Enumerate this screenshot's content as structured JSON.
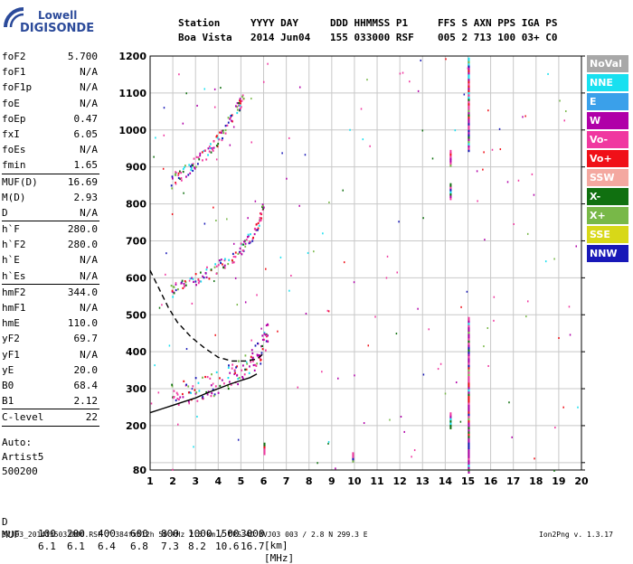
{
  "logo": {
    "line1": "Lowell",
    "line2": "DIGISONDE"
  },
  "header": {
    "row1": [
      "Station",
      "YYYY DAY",
      "DDD HHMMSS P1",
      "FFS S AXN PPS IGA PS"
    ],
    "row2": [
      "Boa Vista",
      "2014 Jun04",
      "155 033000 RSF",
      "005 2 713 100 03+ C0"
    ]
  },
  "params": [
    {
      "name": "foF2",
      "value": "5.700"
    },
    {
      "name": "foF1",
      "value": "N/A"
    },
    {
      "name": "foF1p",
      "value": "N/A"
    },
    {
      "name": "foE",
      "value": "N/A"
    },
    {
      "name": "foEp",
      "value": "0.47"
    },
    {
      "name": "fxI",
      "value": "6.05"
    },
    {
      "name": "foEs",
      "value": "N/A"
    },
    {
      "name": "fmin",
      "value": "1.65"
    },
    {
      "sep": true
    },
    {
      "name": "MUF(D)",
      "value": "16.69"
    },
    {
      "name": "M(D)",
      "value": "2.93"
    },
    {
      "name": "D",
      "value": "N/A"
    },
    {
      "sep": true
    },
    {
      "name": "h`F",
      "value": "280.0"
    },
    {
      "name": "h`F2",
      "value": "280.0"
    },
    {
      "name": "h`E",
      "value": "N/A"
    },
    {
      "name": "h`Es",
      "value": "N/A"
    },
    {
      "sep": true
    },
    {
      "name": "hmF2",
      "value": "344.0"
    },
    {
      "name": "hmF1",
      "value": "N/A"
    },
    {
      "name": "hmE",
      "value": "110.0"
    },
    {
      "name": "yF2",
      "value": "69.7"
    },
    {
      "name": "yF1",
      "value": "N/A"
    },
    {
      "name": "yE",
      "value": "20.0"
    },
    {
      "name": "B0",
      "value": "68.4"
    },
    {
      "name": "B1",
      "value": "2.12"
    },
    {
      "sep": true
    },
    {
      "name": "C-level",
      "value": "22"
    },
    {
      "sep": true
    }
  ],
  "auto": {
    "label": "Auto:",
    "artist": "Artist5",
    "version": "500200"
  },
  "legend": [
    {
      "label": "NoVal",
      "color": "#a8a8a8"
    },
    {
      "label": "NNE",
      "color": "#18e0f0"
    },
    {
      "label": "E",
      "color": "#3aa0ea"
    },
    {
      "label": "W",
      "color": "#b000a8"
    },
    {
      "label": "Vo-",
      "color": "#f038a0"
    },
    {
      "label": "Vo+",
      "color": "#f01018"
    },
    {
      "label": "SSW",
      "color": "#f4a8a0"
    },
    {
      "label": "X-",
      "color": "#107010"
    },
    {
      "label": "X+",
      "color": "#78b848"
    },
    {
      "label": "SSE",
      "color": "#d8d818"
    },
    {
      "label": "NNW",
      "color": "#1818b8"
    }
  ],
  "muf_table": {
    "d_label": "D",
    "d_values": [
      "100",
      "200",
      "400",
      "600",
      "800",
      "1000",
      "1500",
      "3000"
    ],
    "d_unit": "[km]",
    "muf_label": "MUF",
    "muf_values": [
      "6.1",
      "6.1",
      "6.4",
      "6.8",
      "7.3",
      "8.2",
      "10.6",
      "16.7"
    ],
    "muf_unit": "[MHz]"
  },
  "footer": {
    "left": "BVJ03_2014155033000.RSF / 384fx512h 50 kHz 2.5 km / DPS-4D BVJ03 003 / 2.8 N 299.3 E",
    "right": "Ion2Png v. 1.3.17"
  },
  "chart_data": {
    "type": "scatter",
    "xlim": [
      1,
      20
    ],
    "ylim": [
      80,
      1200
    ],
    "x_ticks": [
      1,
      2,
      3,
      4,
      5,
      6,
      7,
      8,
      9,
      10,
      11,
      12,
      13,
      14,
      15,
      16,
      17,
      18,
      19,
      20
    ],
    "y_ticks": [
      80,
      100,
      200,
      300,
      400,
      500,
      600,
      700,
      800,
      900,
      1000,
      1100,
      1200
    ],
    "y_tick_labels": [
      "80",
      "",
      "200",
      "300",
      "400",
      "500",
      "600",
      "700",
      "800",
      "900",
      "1000",
      "1100",
      "1200"
    ],
    "grid": true,
    "traces": [
      {
        "name": "",
        "x": [
          1.9,
          2.4,
          3.0,
          3.6,
          4.2,
          4.7,
          5.1,
          5.5,
          5.8,
          6.0,
          6.2
        ],
        "y": [
          282,
          292,
          302,
          312,
          325,
          342,
          360,
          378,
          400,
          430,
          470
        ]
      },
      {
        "name": "",
        "x": [
          1.9,
          2.4,
          3.0,
          3.6,
          4.2,
          4.7,
          5.1,
          5.5,
          5.8,
          6.0
        ],
        "y": [
          565,
          585,
          600,
          618,
          640,
          660,
          690,
          720,
          760,
          800
        ]
      },
      {
        "name": "",
        "x": [
          1.9,
          2.3,
          2.8,
          3.2,
          3.7,
          4.1,
          4.5,
          4.9,
          5.1
        ],
        "y": [
          860,
          880,
          905,
          925,
          955,
          985,
          1030,
          1070,
          1100
        ]
      }
    ],
    "model_curves": [
      {
        "style": "solid",
        "x": [
          1,
          1.5,
          2,
          2.5,
          3,
          3.5,
          4,
          4.5,
          5,
          5.4,
          5.7
        ],
        "y": [
          235,
          245,
          255,
          265,
          275,
          288,
          300,
          312,
          322,
          330,
          340
        ]
      },
      {
        "style": "dashed",
        "x": [
          1,
          1.4,
          1.8,
          2.2,
          2.8,
          3.4,
          4.0,
          4.6,
          5.2,
          5.7,
          6.0
        ],
        "y": [
          620,
          570,
          520,
          480,
          440,
          410,
          385,
          375,
          375,
          380,
          395
        ]
      }
    ]
  }
}
